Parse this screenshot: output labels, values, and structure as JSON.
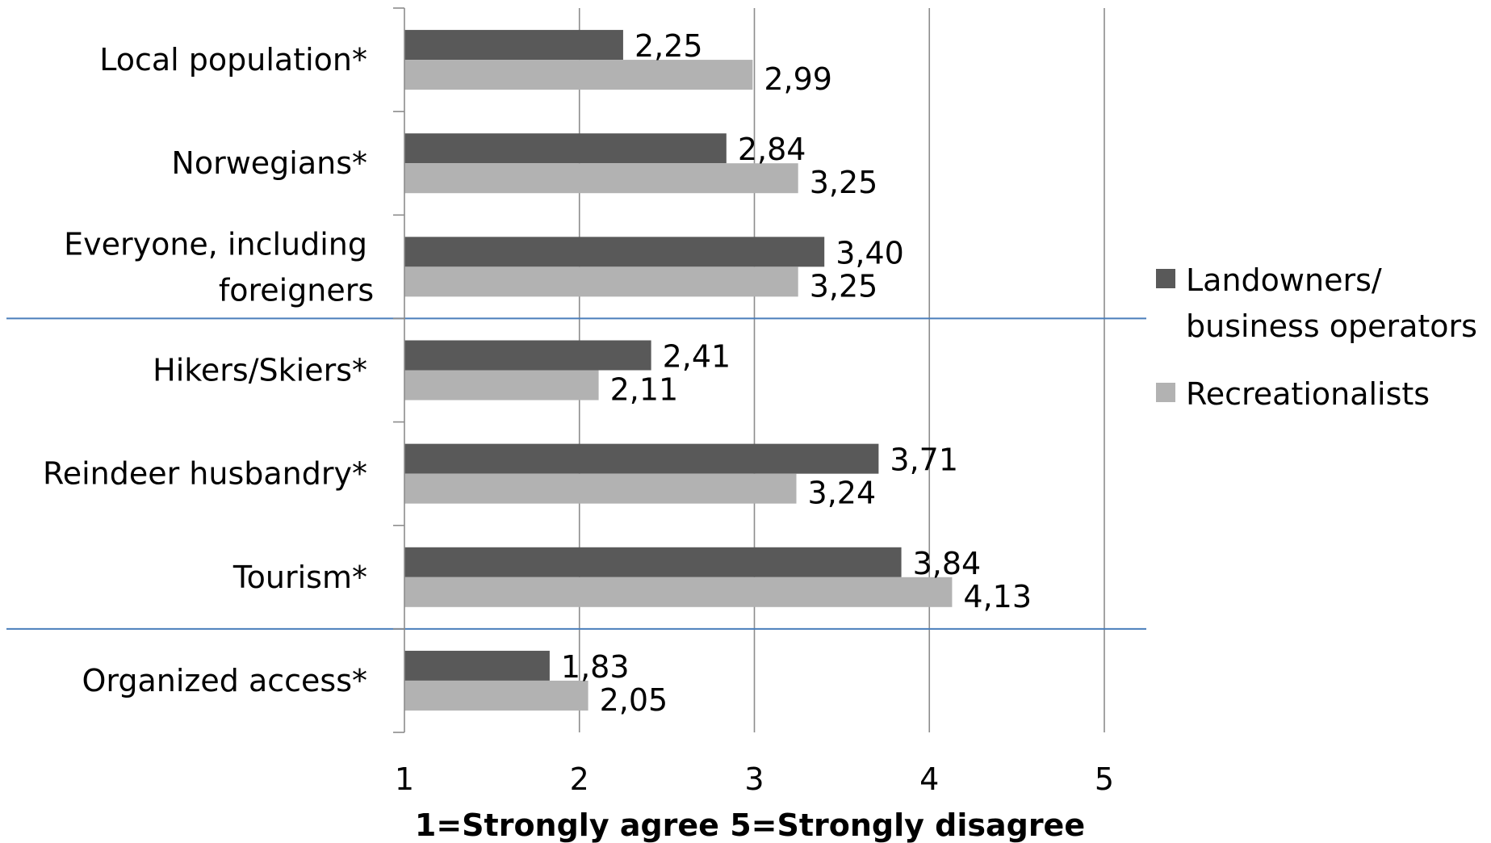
{
  "chart_data": {
    "type": "bar",
    "orientation": "horizontal",
    "categories": [
      "Local population*",
      "Norwegians*",
      "Everyone, including foreigners",
      "Hikers/Skiers*",
      "Reindeer husbandry*",
      "Tourism*",
      "Organized access*"
    ],
    "series": [
      {
        "name": "Landowners/ business operators",
        "color": "#595959",
        "values": [
          2.25,
          2.84,
          3.4,
          2.41,
          3.71,
          3.84,
          1.83
        ],
        "labels": [
          "2,25",
          "2,84",
          "3,40",
          "2,41",
          "3,71",
          "3,84",
          "1,83"
        ]
      },
      {
        "name": "Recreationalists",
        "color": "#b2b2b2",
        "values": [
          2.99,
          3.25,
          3.25,
          2.11,
          3.24,
          4.13,
          2.05
        ],
        "labels": [
          "2,99",
          "3,25",
          "3,25",
          "2,11",
          "3,24",
          "4,13",
          "2,05"
        ]
      }
    ],
    "xlim": [
      1,
      5
    ],
    "xticks": [
      "1",
      "2",
      "3",
      "4",
      "5"
    ],
    "xlabel": "1=Strongly agree 5=Strongly disagree",
    "ylabel": "",
    "title": "",
    "grid": "vertical",
    "group_separators_after": [
      2,
      5
    ],
    "separator_color": "#4a7ebb",
    "legend_position": "right"
  }
}
